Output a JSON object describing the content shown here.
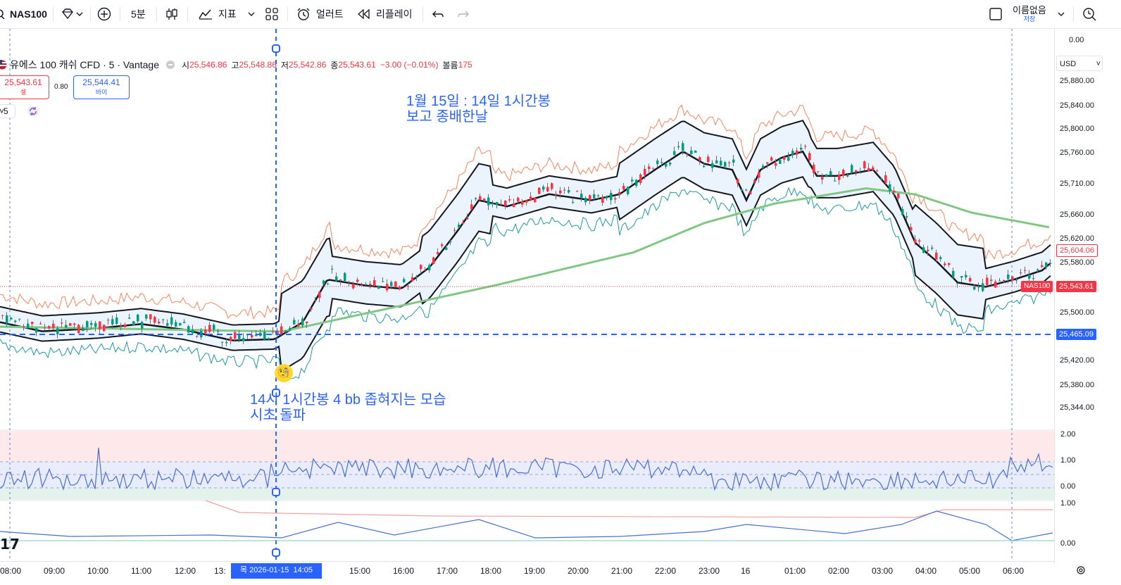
{
  "toolbar": {
    "symbol": "NAS100",
    "interval": "5분",
    "indicators_label": "지표",
    "alert_label": "얼러트",
    "replay_label": "리플레이",
    "layout_name": "이름없음",
    "layout_sub": "저장"
  },
  "legend": {
    "title": "유에스 100 캐쉬 CFD · 5 · Vantage",
    "open_key": "시",
    "open": "25,546.86",
    "high_key": "고",
    "high": "25,548.86",
    "low_key": "저",
    "low": "25,542.86",
    "close_key": "종",
    "close": "25,543.61",
    "change": "−3.00 (−0.01%)",
    "volume_key": "볼륨",
    "volume": "175",
    "sell_price": "25,543.61",
    "sell_label": "셀",
    "spread": "0.80",
    "buy_price": "25,544.41",
    "buy_label": "바이",
    "indicator_count": "5"
  },
  "annotations": {
    "note1": "1월 15일 : 14일 1시간봉\n보고 종배한날",
    "note2": "14시 1시간봉 4 bb 좁혀지는 모습\n시초 돌파"
  },
  "price_axis": {
    "currency": "USD",
    "top_value": "0.00",
    "labels": [
      "25,880.00",
      "25,840.00",
      "25,800.00",
      "25,760.00",
      "25,710.00",
      "25,660.00",
      "25,620.00",
      "25,580.00",
      "25,500.00",
      "25,420.00",
      "25,380.00",
      "25,344.00"
    ],
    "tag_current": "25,604.06",
    "tag_symbol": "NAS100",
    "tag_last": "25,543.61",
    "tag_hline": "25,465.09"
  },
  "osc1_axis": [
    "2.00",
    "1.00",
    "0.00"
  ],
  "osc2_axis": [
    "1.00",
    "0.00"
  ],
  "time_axis": [
    "08:00",
    "09:00",
    "10:00",
    "11:00",
    "12:00",
    "13:",
    "15:00",
    "16:00",
    "17:00",
    "18:00",
    "19:00",
    "20:00",
    "21:00",
    "22:00",
    "23:00",
    "16",
    "01:00",
    "02:00",
    "03:00",
    "04:00",
    "05:00",
    "06:00",
    "08:00"
  ],
  "time_cursor_label": "목 2026-01-15  14:05",
  "colors": {
    "up": "#089981",
    "down": "#f23645",
    "bb": "#131722",
    "ma": "#81c784",
    "accent": "#2962ff",
    "osc": "#5b7fd4"
  }
}
